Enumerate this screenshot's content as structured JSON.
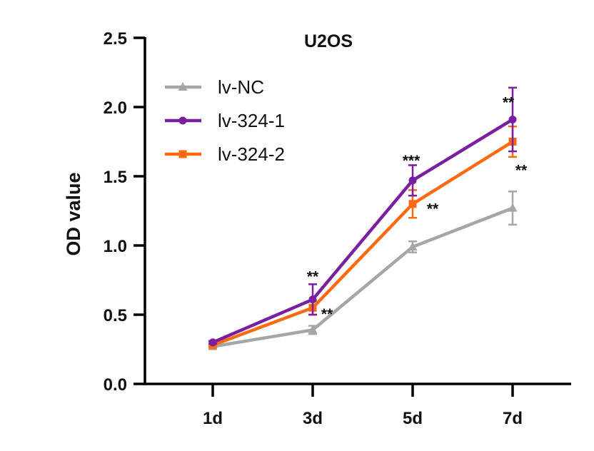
{
  "chart_data": {
    "type": "line",
    "title": "U2OS",
    "ylabel": "OD value",
    "xlabel": "",
    "categories": [
      "1d",
      "3d",
      "5d",
      "7d"
    ],
    "ylim": [
      0,
      2.5
    ],
    "yticks": [
      "0.0",
      "0.5",
      "1.0",
      "1.5",
      "2.0",
      "2.5"
    ],
    "legend_position": "top-left",
    "grid": false,
    "series": [
      {
        "name": "lv-NC",
        "color": "#a6a6a6",
        "marker": "triangle",
        "values": [
          0.27,
          0.39,
          0.99,
          1.27
        ],
        "errors": [
          0.01,
          0.03,
          0.04,
          0.12
        ]
      },
      {
        "name": "lv-324-1",
        "color": "#7a1fa2",
        "marker": "circle",
        "values": [
          0.3,
          0.61,
          1.47,
          1.91
        ],
        "errors": [
          0.01,
          0.11,
          0.11,
          0.23
        ]
      },
      {
        "name": "lv-324-2",
        "color": "#ff6a10",
        "marker": "square",
        "values": [
          0.28,
          0.55,
          1.3,
          1.75
        ],
        "errors": [
          0.01,
          0.05,
          0.1,
          0.11
        ]
      }
    ],
    "annotations": [
      {
        "text": "**",
        "category": "3d",
        "y": 0.79
      },
      {
        "text": "**",
        "category": "3d",
        "y": 0.52
      },
      {
        "text": "***",
        "category": "5d",
        "y": 1.63
      },
      {
        "text": "**",
        "category": "5d",
        "y": 1.28
      },
      {
        "text": "**",
        "category": "7d",
        "y": 2.05
      },
      {
        "text": "**",
        "category": "7d",
        "y": 1.56
      }
    ]
  }
}
